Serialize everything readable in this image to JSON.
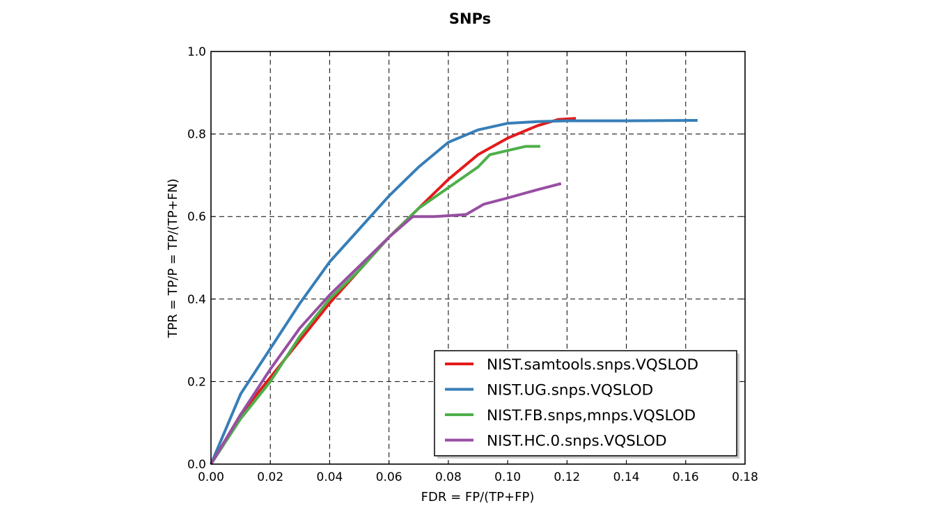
{
  "chart_data": {
    "type": "line",
    "title": "SNPs",
    "xlabel": "FDR = FP/(TP+FP)",
    "ylabel": "TPR = TP/P = TP/(TP+FN)",
    "xlim": [
      0,
      0.18
    ],
    "ylim": [
      0,
      1.0
    ],
    "xticks": [
      "0.00",
      "0.02",
      "0.04",
      "0.06",
      "0.08",
      "0.10",
      "0.12",
      "0.14",
      "0.16",
      "0.18"
    ],
    "yticks": [
      "0.0",
      "0.2",
      "0.4",
      "0.6",
      "0.8",
      "1.0"
    ],
    "grid": true,
    "legend_position": "lower-right",
    "series": [
      {
        "name": "NIST.samtools.snps.VQSLOD",
        "color": "#e41a1c",
        "x": [
          0.0,
          0.01,
          0.02,
          0.03,
          0.04,
          0.05,
          0.06,
          0.07,
          0.08,
          0.09,
          0.1,
          0.11,
          0.117,
          0.123
        ],
        "y": [
          0.0,
          0.12,
          0.21,
          0.3,
          0.39,
          0.47,
          0.55,
          0.62,
          0.69,
          0.75,
          0.79,
          0.82,
          0.835,
          0.838
        ]
      },
      {
        "name": "NIST.UG.snps.VQSLOD",
        "color": "#377eb8",
        "x": [
          0.0,
          0.01,
          0.02,
          0.03,
          0.04,
          0.05,
          0.06,
          0.07,
          0.08,
          0.09,
          0.1,
          0.11,
          0.12,
          0.14,
          0.164
        ],
        "y": [
          0.0,
          0.17,
          0.28,
          0.39,
          0.49,
          0.57,
          0.65,
          0.72,
          0.78,
          0.81,
          0.826,
          0.83,
          0.832,
          0.832,
          0.833
        ]
      },
      {
        "name": "NIST.FB.snps,mnps.VQSLOD",
        "color": "#4daf4a",
        "x": [
          0.0,
          0.01,
          0.02,
          0.03,
          0.04,
          0.05,
          0.06,
          0.07,
          0.08,
          0.09,
          0.094,
          0.1,
          0.106,
          0.111
        ],
        "y": [
          0.0,
          0.11,
          0.2,
          0.31,
          0.4,
          0.47,
          0.55,
          0.62,
          0.67,
          0.72,
          0.75,
          0.76,
          0.77,
          0.77
        ]
      },
      {
        "name": "NIST.HC.0.snps.VQSLOD",
        "color": "#984ea3",
        "x": [
          0.0,
          0.01,
          0.02,
          0.03,
          0.04,
          0.05,
          0.06,
          0.068,
          0.075,
          0.08,
          0.086,
          0.092,
          0.1,
          0.11,
          0.118
        ],
        "y": [
          0.0,
          0.12,
          0.23,
          0.33,
          0.41,
          0.48,
          0.55,
          0.6,
          0.6,
          0.602,
          0.605,
          0.63,
          0.645,
          0.665,
          0.68
        ]
      }
    ]
  }
}
